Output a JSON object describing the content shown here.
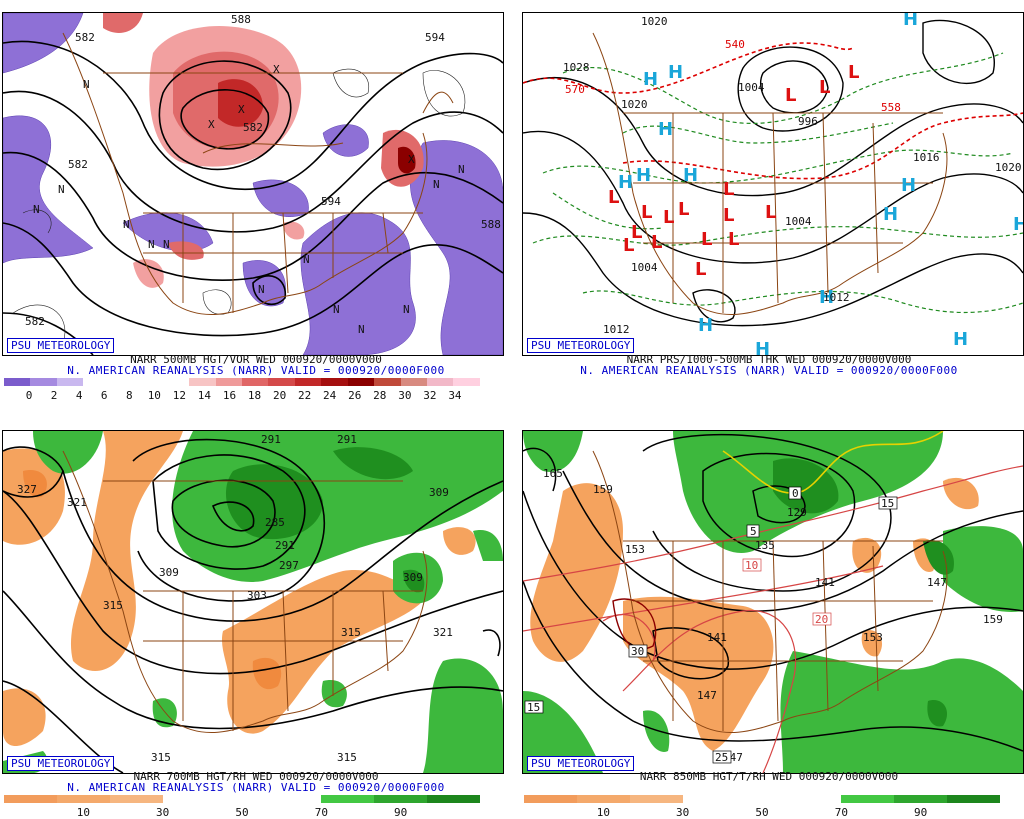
{
  "panels": [
    {
      "id": "p1",
      "line1": "NARR 500MB HGT/VOR WED 000920/0000V000",
      "line2": "N. AMERICAN REANALYSIS (NARR) VALID = 000920/0000F000",
      "psu": "PSU METEOROLOGY",
      "contour_labels": [
        "582",
        "588",
        "594",
        "582",
        "582",
        "588",
        "594",
        "582"
      ],
      "colorbar": {
        "colors": [
          "#7b5ccc",
          "#a58ae0",
          "#c9b8ef",
          "#ffffff",
          "#ffffff",
          "#ffffff",
          "#ffffff",
          "#f7c4c4",
          "#ef9a9a",
          "#e06666",
          "#d44a4a",
          "#c22828",
          "#a50f0f",
          "#8b0000",
          "#c04a3a",
          "#d88a80",
          "#f2b8c8",
          "#ffd0e0"
        ],
        "ticks": [
          "0",
          "2",
          "4",
          "6",
          "8",
          "10",
          "12",
          "14",
          "16",
          "18",
          "20",
          "22",
          "24",
          "26",
          "28",
          "30",
          "32",
          "34"
        ]
      }
    },
    {
      "id": "p2",
      "line1": "NARR PRS/1000-500MB THK WED 000920/0000V000",
      "line2": "N. AMERICAN REANALYSIS (NARR) VALID = 000920/0000F000",
      "psu": "PSU METEOROLOGY",
      "contour_labels": [
        "1020",
        "1028",
        "1020",
        "1004",
        "996",
        "1004",
        "1016",
        "1020",
        "1012",
        "1012",
        "1004",
        "540",
        "570",
        "558"
      ],
      "highs": [
        "H",
        "H",
        "H",
        "H",
        "H",
        "H",
        "H",
        "H",
        "H",
        "H",
        "H",
        "H",
        "H",
        "H"
      ],
      "lows": [
        "L",
        "L",
        "L",
        "L",
        "L",
        "L",
        "L",
        "L",
        "L",
        "L",
        "L",
        "L",
        "L",
        "L",
        "L",
        "L"
      ]
    },
    {
      "id": "p3",
      "line1": "NARR 700MB HGT/RH WED 000920/0000V000",
      "line2": "N. AMERICAN REANALYSIS (NARR) VALID = 000920/0000F000",
      "psu": "PSU METEOROLOGY",
      "contour_labels": [
        "291",
        "291",
        "327",
        "321",
        "285",
        "291",
        "297",
        "309",
        "303",
        "315",
        "315",
        "309",
        "309",
        "321",
        "315",
        "315"
      ],
      "colorbar": {
        "colors": [
          "#f29c5c",
          "#f4a96b",
          "#f6b680",
          "#ffffff",
          "#ffffff",
          "#ffffff",
          "#43c843",
          "#2ea62e",
          "#1d861d"
        ],
        "ticks": [
          "10",
          "30",
          "50",
          "70",
          "90"
        ]
      }
    },
    {
      "id": "p4",
      "line1": "NARR 850MB HGT/T/RH WED 000920/0000V000",
      "line2": "",
      "psu": "PSU METEOROLOGY",
      "contour_labels": [
        "165",
        "159",
        "153",
        "129",
        "135",
        "141",
        "141",
        "147",
        "153",
        "159",
        "147",
        "147"
      ],
      "temp_labels": [
        "0",
        "5",
        "10",
        "15",
        "20",
        "30",
        "15",
        "25"
      ],
      "colorbar": {
        "colors": [
          "#f29c5c",
          "#f4a96b",
          "#f6b680",
          "#ffffff",
          "#ffffff",
          "#ffffff",
          "#43c843",
          "#2ea62e",
          "#1d861d"
        ],
        "ticks": [
          "10",
          "30",
          "50",
          "70",
          "90"
        ]
      }
    }
  ]
}
